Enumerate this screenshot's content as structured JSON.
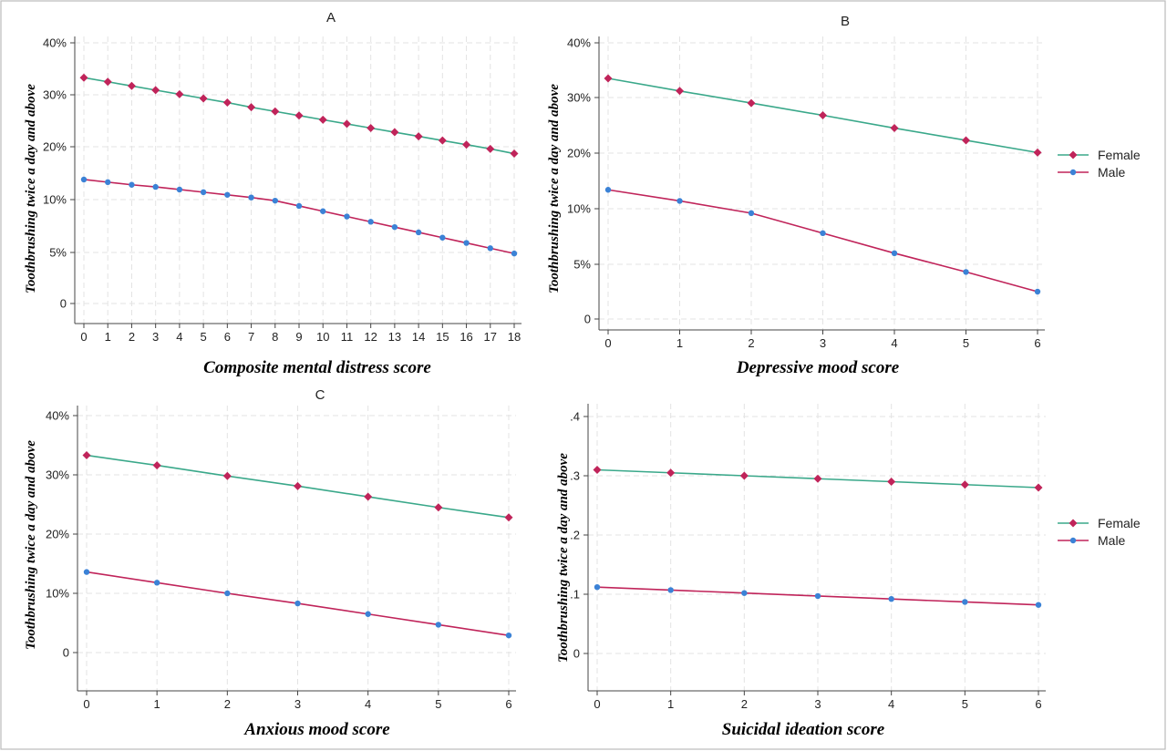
{
  "chart_data": [
    {
      "type": "line",
      "title": "A",
      "xlabel": "Composite mental distress score",
      "ylabel": "Toothbrushing twice a day and above",
      "x": [
        0,
        1,
        2,
        3,
        4,
        5,
        6,
        7,
        8,
        9,
        10,
        11,
        12,
        13,
        14,
        15,
        16,
        17,
        18
      ],
      "x_tick_labels": [
        "0",
        "1",
        "2",
        "3",
        "4",
        "5",
        "6",
        "7",
        "8",
        "9",
        "10",
        "11",
        "12",
        "13",
        "14",
        "15",
        "16",
        "17",
        "18"
      ],
      "xlim": [
        0,
        18
      ],
      "y_ticks": [
        0,
        5,
        10,
        20,
        30,
        40
      ],
      "y_tick_labels": [
        "0",
        "5%",
        "10%",
        "20%",
        "30%",
        "40%"
      ],
      "ylim": [
        0,
        40
      ],
      "grid": true,
      "legend": "none",
      "series": [
        {
          "name": "",
          "line_color": "#3aa88a",
          "marker_color": "#c0245a",
          "marker": "diamond",
          "values": [
            33.3,
            32.5,
            31.7,
            30.9,
            30.1,
            29.3,
            28.5,
            27.6,
            26.8,
            26.0,
            25.2,
            24.4,
            23.6,
            22.8,
            22.0,
            21.2,
            20.4,
            19.6,
            18.7
          ]
        },
        {
          "name": "",
          "line_color": "#c0245a",
          "marker_color": "#3b82d6",
          "marker": "circle",
          "values": [
            13.8,
            13.3,
            12.8,
            12.4,
            11.9,
            11.4,
            10.9,
            10.4,
            9.9,
            9.4,
            8.9,
            8.4,
            7.9,
            7.4,
            6.9,
            6.4,
            5.9,
            5.4,
            4.9
          ]
        }
      ]
    },
    {
      "type": "line",
      "title": "B",
      "xlabel": "Depressive mood score",
      "ylabel": "Toothbrushing twice a day and above",
      "x": [
        0,
        1,
        2,
        3,
        4,
        5,
        6
      ],
      "x_tick_labels": [
        "0",
        "1",
        "2",
        "3",
        "4",
        "5",
        "6"
      ],
      "xlim": [
        0,
        6
      ],
      "y_ticks": [
        0,
        5,
        10,
        20,
        30,
        40
      ],
      "y_tick_labels": [
        "0",
        "5%",
        "10%",
        "20%",
        "30%",
        "40%"
      ],
      "ylim": [
        0,
        40
      ],
      "grid": true,
      "legend": "right",
      "legend_entries": [
        "Female",
        "Male"
      ],
      "series": [
        {
          "name": "Female",
          "line_color": "#3aa88a",
          "marker_color": "#c0245a",
          "marker": "diamond",
          "values": [
            33.5,
            31.2,
            29.0,
            26.8,
            24.5,
            22.3,
            20.1
          ]
        },
        {
          "name": "Male",
          "line_color": "#c0245a",
          "marker_color": "#3b82d6",
          "marker": "circle",
          "values": [
            13.4,
            11.4,
            9.6,
            7.8,
            6.0,
            4.3,
            2.5
          ]
        }
      ]
    },
    {
      "type": "line",
      "title": "C",
      "xlabel": "Anxious mood score",
      "ylabel": "Toothbrushing twice a day and above",
      "x": [
        0,
        1,
        2,
        3,
        4,
        5,
        6
      ],
      "x_tick_labels": [
        "0",
        "1",
        "2",
        "3",
        "4",
        "5",
        "6"
      ],
      "xlim": [
        0,
        6
      ],
      "y_ticks": [
        0,
        10,
        20,
        30,
        40
      ],
      "y_tick_labels": [
        "0",
        "10%",
        "20%",
        "30%",
        "40%"
      ],
      "ylim": [
        0,
        40
      ],
      "grid": true,
      "legend": "none",
      "series": [
        {
          "name": "",
          "line_color": "#3aa88a",
          "marker_color": "#c0245a",
          "marker": "diamond",
          "values": [
            33.3,
            31.6,
            29.8,
            28.1,
            26.3,
            24.5,
            22.8
          ]
        },
        {
          "name": "",
          "line_color": "#c0245a",
          "marker_color": "#3b82d6",
          "marker": "circle",
          "values": [
            13.6,
            11.8,
            10.0,
            8.3,
            6.5,
            4.7,
            2.9
          ]
        }
      ]
    },
    {
      "type": "line",
      "title": "",
      "xlabel": "Suicidal ideation score",
      "ylabel": "Toothbrushing twice a day and above",
      "x": [
        0,
        1,
        2,
        3,
        4,
        5,
        6
      ],
      "x_tick_labels": [
        "0",
        "1",
        "2",
        "3",
        "4",
        "5",
        "6"
      ],
      "xlim": [
        0,
        6
      ],
      "y_ticks": [
        0,
        0.1,
        0.2,
        0.3,
        0.4
      ],
      "y_tick_labels": [
        "0",
        ".1",
        ".2",
        ".3",
        ".4"
      ],
      "ylim": [
        0,
        0.4
      ],
      "grid": true,
      "legend": "right",
      "legend_entries": [
        "Female",
        "Male"
      ],
      "series": [
        {
          "name": "Female",
          "line_color": "#3aa88a",
          "marker_color": "#c0245a",
          "marker": "diamond",
          "values": [
            0.31,
            0.305,
            0.3,
            0.295,
            0.29,
            0.285,
            0.28
          ]
        },
        {
          "name": "Male",
          "line_color": "#c0245a",
          "marker_color": "#3b82d6",
          "marker": "circle",
          "values": [
            0.112,
            0.107,
            0.102,
            0.097,
            0.092,
            0.087,
            0.082
          ]
        }
      ]
    }
  ]
}
